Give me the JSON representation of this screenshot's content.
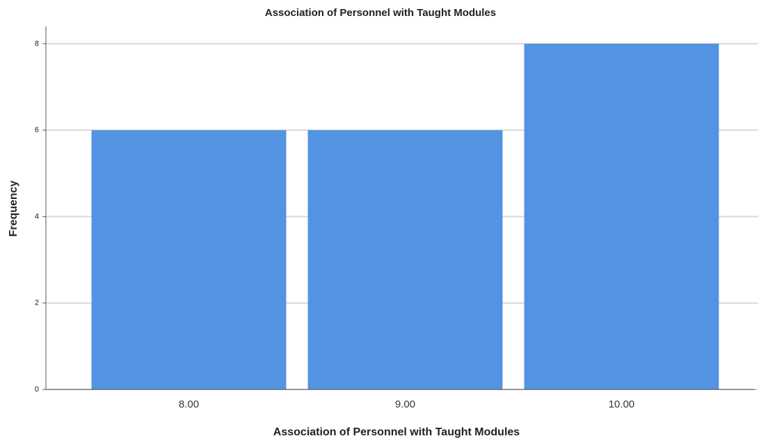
{
  "chart_data": {
    "type": "bar",
    "title": "Association of Personnel with Taught Modules",
    "x_label": "Association of Personnel with Taught Modules",
    "y_label": "Frequency",
    "categories": [
      "8.00",
      "9.00",
      "10.00"
    ],
    "values": [
      6,
      6,
      8
    ],
    "color": "#5294e2",
    "ylim": [
      0,
      8.4
    ],
    "yticks": [
      0,
      2,
      4,
      6,
      8
    ],
    "grid": true
  }
}
